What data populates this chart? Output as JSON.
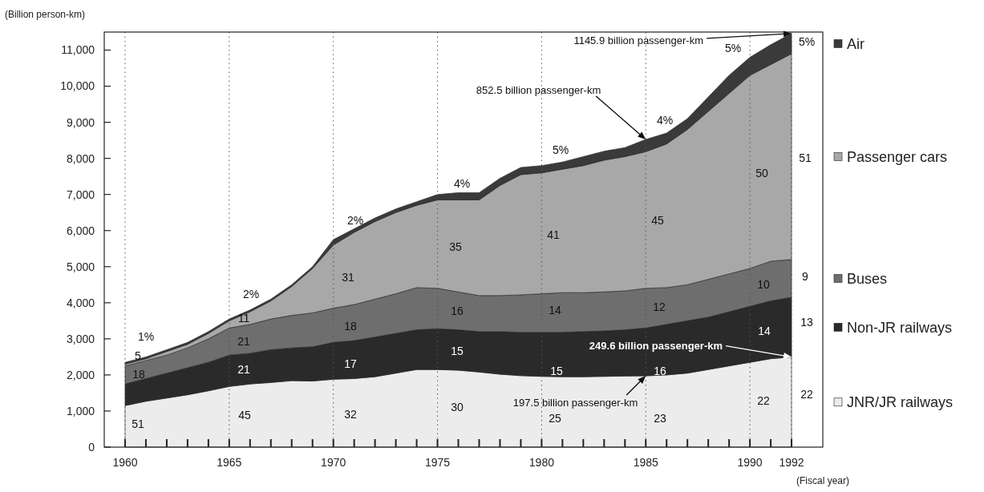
{
  "chart_data": {
    "type": "area",
    "stacked": true,
    "ylabel": "(Billion person-km)",
    "xlabel": "(Fiscal year)",
    "x": [
      1960,
      1961,
      1962,
      1963,
      1964,
      1965,
      1966,
      1967,
      1968,
      1969,
      1970,
      1971,
      1972,
      1973,
      1974,
      1975,
      1976,
      1977,
      1978,
      1979,
      1980,
      1981,
      1982,
      1983,
      1984,
      1985,
      1986,
      1987,
      1988,
      1989,
      1990,
      1991,
      1992
    ],
    "series": [
      {
        "name": "JNR/JR railways",
        "color": "#ececec",
        "values": [
          1150,
          1270,
          1360,
          1450,
          1560,
          1680,
          1750,
          1790,
          1840,
          1830,
          1880,
          1900,
          1950,
          2050,
          2150,
          2150,
          2130,
          2080,
          2020,
          1980,
          1960,
          1950,
          1950,
          1960,
          1970,
          1975,
          2000,
          2050,
          2150,
          2250,
          2350,
          2450,
          2496
        ]
      },
      {
        "name": "Non-JR railways",
        "color": "#2a2a2a",
        "values": [
          600,
          630,
          690,
          750,
          790,
          870,
          850,
          910,
          910,
          950,
          1020,
          1050,
          1100,
          1100,
          1100,
          1130,
          1120,
          1120,
          1180,
          1200,
          1220,
          1230,
          1250,
          1260,
          1280,
          1325,
          1400,
          1450,
          1450,
          1500,
          1550,
          1600,
          1654
        ]
      },
      {
        "name": "Buses",
        "color": "#6e6e6e",
        "values": [
          500,
          500,
          500,
          550,
          650,
          750,
          800,
          850,
          900,
          940,
          950,
          1000,
          1050,
          1100,
          1170,
          1120,
          1050,
          1000,
          1000,
          1040,
          1070,
          1100,
          1080,
          1080,
          1080,
          1100,
          1020,
          1000,
          1050,
          1050,
          1050,
          1100,
          1050
        ]
      },
      {
        "name": "Passenger cars",
        "color": "#a8a8a8",
        "values": [
          50,
          50,
          100,
          100,
          150,
          200,
          350,
          500,
          800,
          1230,
          1750,
          2000,
          2150,
          2250,
          2280,
          2450,
          2550,
          2650,
          3050,
          3330,
          3350,
          3420,
          3520,
          3650,
          3720,
          3785,
          3980,
          4300,
          4650,
          5000,
          5350,
          5450,
          5700
        ]
      },
      {
        "name": "Air",
        "color": "#3a3a3a",
        "values": [
          50,
          50,
          50,
          50,
          50,
          50,
          50,
          50,
          50,
          50,
          150,
          100,
          100,
          100,
          100,
          150,
          200,
          200,
          200,
          200,
          200,
          200,
          250,
          250,
          250,
          340,
          300,
          300,
          400,
          500,
          500,
          550,
          559
        ]
      }
    ],
    "xlim": [
      1959,
      1993.5
    ],
    "ylim": [
      0,
      11500
    ],
    "xticks": [
      1960,
      {
        "value": 1961,
        "label": null
      },
      {
        "value": 1962,
        "label": null
      },
      {
        "value": 1963,
        "label": null
      },
      {
        "value": 1964,
        "label": null
      },
      1965,
      {
        "value": 1966,
        "label": null
      },
      {
        "value": 1967,
        "label": null
      },
      {
        "value": 1968,
        "label": null
      },
      {
        "value": 1969,
        "label": null
      },
      1970,
      {
        "value": 1971,
        "label": null
      },
      {
        "value": 1972,
        "label": null
      },
      {
        "value": 1973,
        "label": null
      },
      {
        "value": 1974,
        "label": null
      },
      1975,
      {
        "value": 1976,
        "label": null
      },
      {
        "value": 1977,
        "label": null
      },
      {
        "value": 1978,
        "label": null
      },
      {
        "value": 1979,
        "label": null
      },
      1980,
      {
        "value": 1981,
        "label": null
      },
      {
        "value": 1982,
        "label": null
      },
      {
        "value": 1983,
        "label": null
      },
      {
        "value": 1984,
        "label": null
      },
      1985,
      {
        "value": 1986,
        "label": null
      },
      {
        "value": 1987,
        "label": null
      },
      {
        "value": 1988,
        "label": null
      },
      {
        "value": 1989,
        "label": null
      },
      1990,
      {
        "value": 1991,
        "label": null
      },
      1992
    ],
    "yticks": [
      0,
      {
        "value": 1000,
        "label": "1,000"
      },
      {
        "value": 2000,
        "label": "2,000"
      },
      {
        "value": 3000,
        "label": "3,000"
      },
      {
        "value": 4000,
        "label": "4,000"
      },
      {
        "value": 5000,
        "label": "5,000"
      },
      {
        "value": 6000,
        "label": "6,000"
      },
      {
        "value": 7000,
        "label": "7,000"
      },
      {
        "value": 8000,
        "label": "8,000"
      },
      {
        "value": 9000,
        "label": "9,000"
      },
      {
        "value": 10000,
        "label": "10,000"
      },
      {
        "value": 11000,
        "label": "11,000"
      }
    ],
    "grid": "x",
    "legend": "right",
    "annotations": [
      "1145.9 billion passenger-km",
      "852.5 billion passenger-km",
      "249.6 billion passenger-km",
      "197.5 billion passenger-km",
      "1%",
      "5",
      "18",
      "51",
      "2%",
      "11",
      "21",
      "21",
      "45",
      "2%",
      "31",
      "18",
      "17",
      "32",
      "4%",
      "35",
      "16",
      "15",
      "30",
      "5%",
      "41",
      "14",
      "15",
      "25",
      "4%",
      "45",
      "12",
      "16",
      "23",
      "5%",
      "50",
      "10",
      "14",
      "22",
      "5%",
      "51",
      "9",
      "13",
      "22"
    ]
  }
}
